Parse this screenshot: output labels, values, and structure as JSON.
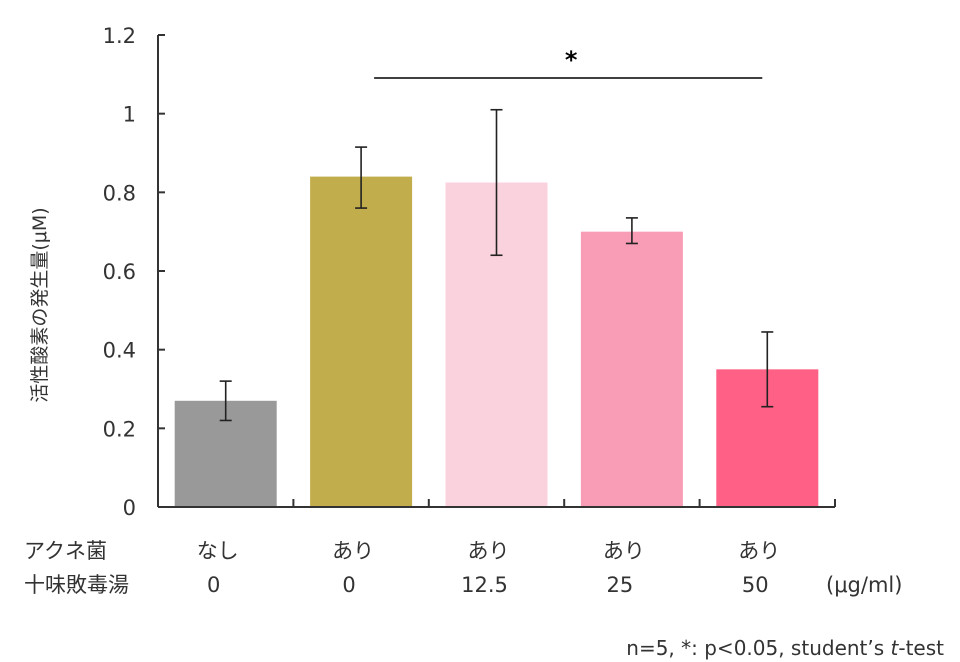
{
  "chart_data": {
    "type": "bar",
    "ylabel": "活性酸素の発生量(μM)",
    "ylim": [
      0,
      1.2
    ],
    "yticks": [
      "0",
      "0.2",
      "0.4",
      "0.6",
      "0.8",
      "1",
      "1.2"
    ],
    "ytick_values": [
      0,
      0.2,
      0.4,
      0.6,
      0.8,
      1.0,
      1.2
    ],
    "row_labels": [
      "アクネ菌",
      "十味敗毒湯"
    ],
    "unit_label": "(μg/ml)",
    "categories": [
      {
        "acne": "なし",
        "dose": "0",
        "value": 0.27,
        "err_low": 0.22,
        "err_high": 0.32,
        "color": "#999999"
      },
      {
        "acne": "あり",
        "dose": "0",
        "value": 0.84,
        "err_low": 0.76,
        "err_high": 0.915,
        "color": "#c2ad4c"
      },
      {
        "acne": "あり",
        "dose": "12.5",
        "value": 0.825,
        "err_low": 0.64,
        "err_high": 1.01,
        "color": "#fad2de"
      },
      {
        "acne": "あり",
        "dose": "25",
        "value": 0.7,
        "err_low": 0.67,
        "err_high": 0.735,
        "color": "#f89db5"
      },
      {
        "acne": "あり",
        "dose": "50",
        "value": 0.35,
        "err_low": 0.255,
        "err_high": 0.445,
        "color": "#fe6185"
      }
    ],
    "significance": {
      "from": 1,
      "to": 4,
      "label": "*"
    },
    "footnote": "n=5, *: p<0.05, student’s ",
    "footnote_italic": "t",
    "footnote_tail": "-test"
  }
}
